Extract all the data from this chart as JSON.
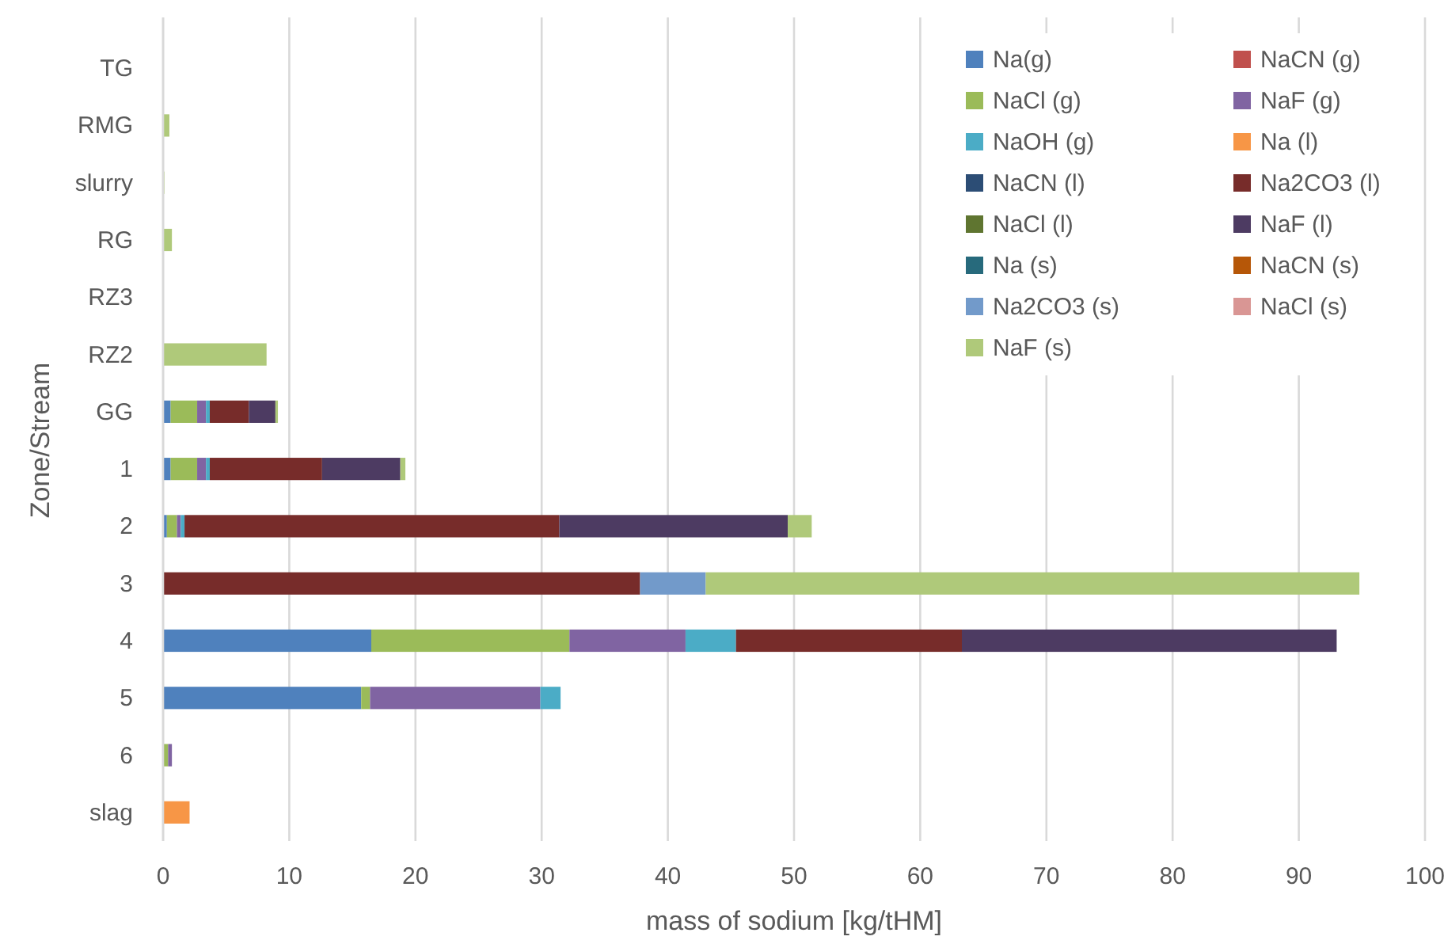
{
  "chart_data": {
    "type": "bar",
    "orientation": "horizontal",
    "stacked": true,
    "xlabel": "mass of sodium [kg/tHM]",
    "ylabel": "Zone/Stream",
    "categories": [
      "TG",
      "RMG",
      "slurry",
      "RG",
      "RZ3",
      "RZ2",
      "GG",
      "1",
      "2",
      "3",
      "4",
      "5",
      "6",
      "slag"
    ],
    "xlim": [
      0,
      100
    ],
    "xticks": [
      0,
      10,
      20,
      30,
      40,
      50,
      60,
      70,
      80,
      90,
      100
    ],
    "grid": "x",
    "legend": "top right",
    "series": [
      {
        "name": "Na(g)",
        "color": "#4f81bd",
        "values": [
          0,
          0,
          0,
          0,
          0,
          0,
          0.6,
          0.6,
          0.3,
          0,
          16.5,
          15.7,
          0,
          0
        ]
      },
      {
        "name": "NaCN (g)",
        "color": "#c0504d",
        "values": [
          0,
          0,
          0,
          0,
          0,
          0,
          0,
          0,
          0,
          0,
          0,
          0,
          0,
          0
        ]
      },
      {
        "name": "NaCl (g)",
        "color": "#9bbb59",
        "values": [
          0,
          0,
          0,
          0,
          0,
          0,
          2.1,
          2.1,
          0.8,
          0,
          15.7,
          0.7,
          0.4,
          0
        ]
      },
      {
        "name": "NaF (g)",
        "color": "#8064a2",
        "values": [
          0,
          0,
          0,
          0,
          0,
          0,
          0.7,
          0.7,
          0.3,
          0,
          9.2,
          13.5,
          0.3,
          0
        ]
      },
      {
        "name": "NaOH (g)",
        "color": "#4bacc6",
        "values": [
          0,
          0,
          0,
          0,
          0,
          0,
          0.3,
          0.3,
          0.3,
          0,
          4.0,
          1.6,
          0,
          0
        ]
      },
      {
        "name": "Na (l)",
        "color": "#f79646",
        "values": [
          0,
          0,
          0,
          0,
          0,
          0,
          0,
          0,
          0,
          0,
          0,
          0,
          0,
          2.1
        ]
      },
      {
        "name": "NaCN (l)",
        "color": "#2c4d75",
        "values": [
          0,
          0,
          0,
          0,
          0,
          0,
          0,
          0,
          0,
          0,
          0,
          0,
          0,
          0
        ]
      },
      {
        "name": "Na2CO3 (l)",
        "color": "#772c2a",
        "values": [
          0,
          0,
          0,
          0,
          0,
          0,
          3.1,
          8.9,
          29.7,
          37.8,
          17.9,
          0,
          0,
          0
        ]
      },
      {
        "name": "NaCl (l)",
        "color": "#5f7530",
        "values": [
          0,
          0,
          0,
          0,
          0,
          0,
          0,
          0,
          0,
          0,
          0,
          0,
          0,
          0
        ]
      },
      {
        "name": "NaF (l)",
        "color": "#4d3b62",
        "values": [
          0,
          0,
          0,
          0,
          0,
          0,
          2.1,
          6.2,
          18.1,
          0,
          29.7,
          0,
          0,
          0
        ]
      },
      {
        "name": "Na (s)",
        "color": "#276a7c",
        "values": [
          0,
          0,
          0,
          0,
          0,
          0,
          0,
          0,
          0,
          0,
          0,
          0,
          0,
          0
        ]
      },
      {
        "name": "NaCN (s)",
        "color": "#b65708",
        "values": [
          0,
          0,
          0,
          0,
          0,
          0,
          0,
          0,
          0,
          0,
          0,
          0,
          0,
          0
        ]
      },
      {
        "name": "Na2CO3 (s)",
        "color": "#729aca",
        "values": [
          0,
          0,
          0,
          0,
          0,
          0,
          0,
          0,
          0,
          5.2,
          0,
          0,
          0,
          0
        ]
      },
      {
        "name": "NaCl (s)",
        "color": "#d99694",
        "values": [
          0,
          0,
          0,
          0,
          0,
          0,
          0,
          0,
          0,
          0,
          0,
          0,
          0,
          0
        ]
      },
      {
        "name": "NaF (s)",
        "color": "#afc97a",
        "values": [
          0,
          0.5,
          0.1,
          0.7,
          0,
          8.2,
          0.2,
          0.4,
          1.9,
          51.8,
          0,
          0,
          0,
          0
        ]
      }
    ]
  }
}
